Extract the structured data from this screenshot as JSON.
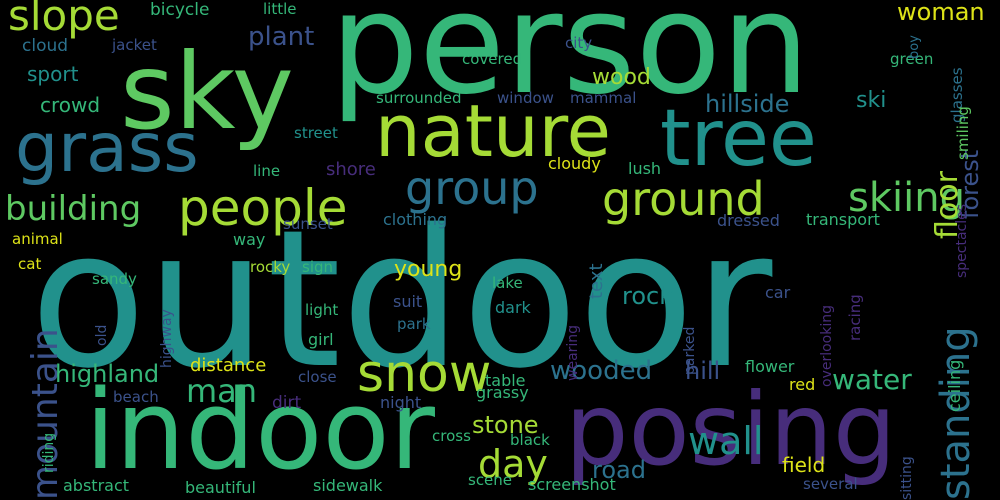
{
  "palette": {
    "background": "#000000",
    "yellow": "#dde318",
    "lime": "#a5db36",
    "green": "#5ec962",
    "emerald": "#35b779",
    "teal": "#21918c",
    "slate": "#2c728e",
    "indigo": "#3b528b",
    "violet": "#472d7b",
    "purple": "#440154"
  },
  "words": [
    {
      "text": "outdoor",
      "color": "teal"
    },
    {
      "text": "person",
      "color": "emerald"
    },
    {
      "text": "sky",
      "color": "green"
    },
    {
      "text": "indoor",
      "color": "emerald"
    },
    {
      "text": "posing",
      "color": "violet"
    },
    {
      "text": "nature",
      "color": "lime"
    },
    {
      "text": "tree",
      "color": "teal"
    },
    {
      "text": "grass",
      "color": "slate"
    },
    {
      "text": "people",
      "color": "lime"
    },
    {
      "text": "group",
      "color": "slate"
    },
    {
      "text": "ground",
      "color": "lime"
    },
    {
      "text": "snow",
      "color": "lime"
    },
    {
      "text": "slope",
      "color": "lime"
    },
    {
      "text": "standing",
      "color": "slate"
    },
    {
      "text": "skiing",
      "color": "green"
    },
    {
      "text": "building",
      "color": "green"
    },
    {
      "text": "mountain",
      "color": "indigo"
    },
    {
      "text": "wall",
      "color": "teal"
    },
    {
      "text": "day",
      "color": "lime"
    },
    {
      "text": "man",
      "color": "emerald"
    },
    {
      "text": "water",
      "color": "emerald"
    },
    {
      "text": "wooded",
      "color": "slate"
    },
    {
      "text": "highland",
      "color": "emerald"
    },
    {
      "text": "floor",
      "color": "lime"
    },
    {
      "text": "forest",
      "color": "indigo"
    },
    {
      "text": "hillside",
      "color": "slate"
    },
    {
      "text": "plant",
      "color": "indigo"
    },
    {
      "text": "woman",
      "color": "yellow"
    },
    {
      "text": "stone",
      "color": "lime"
    },
    {
      "text": "rock",
      "color": "teal"
    },
    {
      "text": "road",
      "color": "slate"
    },
    {
      "text": "young",
      "color": "yellow"
    },
    {
      "text": "hill",
      "color": "indigo"
    },
    {
      "text": "wood",
      "color": "lime"
    },
    {
      "text": "ski",
      "color": "teal"
    },
    {
      "text": "crowd",
      "color": "emerald"
    },
    {
      "text": "sport",
      "color": "teal"
    },
    {
      "text": "field",
      "color": "yellow"
    },
    {
      "text": "distance",
      "color": "yellow"
    },
    {
      "text": "shore",
      "color": "violet"
    },
    {
      "text": "text",
      "color": "slate"
    },
    {
      "text": "cloud",
      "color": "slate"
    },
    {
      "text": "bicycle",
      "color": "emerald"
    },
    {
      "text": "little",
      "color": "emerald"
    },
    {
      "text": "jacket",
      "color": "indigo"
    },
    {
      "text": "city",
      "color": "indigo"
    },
    {
      "text": "covered",
      "color": "emerald"
    },
    {
      "text": "green",
      "color": "emerald"
    },
    {
      "text": "boy",
      "color": "slate"
    },
    {
      "text": "glasses",
      "color": "slate"
    },
    {
      "text": "smiling",
      "color": "green"
    },
    {
      "text": "spectacles",
      "color": "violet"
    },
    {
      "text": "surrounded",
      "color": "emerald"
    },
    {
      "text": "window",
      "color": "indigo"
    },
    {
      "text": "mammal",
      "color": "indigo"
    },
    {
      "text": "street",
      "color": "teal"
    },
    {
      "text": "line",
      "color": "emerald"
    },
    {
      "text": "cloudy",
      "color": "yellow"
    },
    {
      "text": "lush",
      "color": "emerald"
    },
    {
      "text": "clothing",
      "color": "slate"
    },
    {
      "text": "sunset",
      "color": "indigo"
    },
    {
      "text": "dressed",
      "color": "indigo"
    },
    {
      "text": "transport",
      "color": "emerald"
    },
    {
      "text": "animal",
      "color": "yellow"
    },
    {
      "text": "way",
      "color": "emerald"
    },
    {
      "text": "cat",
      "color": "yellow"
    },
    {
      "text": "sandy",
      "color": "emerald"
    },
    {
      "text": "rocky",
      "color": "lime"
    },
    {
      "text": "sign",
      "color": "emerald"
    },
    {
      "text": "lake",
      "color": "emerald"
    },
    {
      "text": "wearing",
      "color": "violet"
    },
    {
      "text": "overlooking",
      "color": "violet"
    },
    {
      "text": "racing",
      "color": "violet"
    },
    {
      "text": "ceiling",
      "color": "emerald"
    },
    {
      "text": "highway",
      "color": "indigo"
    },
    {
      "text": "old",
      "color": "indigo"
    },
    {
      "text": "light",
      "color": "emerald"
    },
    {
      "text": "dark",
      "color": "teal"
    },
    {
      "text": "suit",
      "color": "indigo"
    },
    {
      "text": "park",
      "color": "slate"
    },
    {
      "text": "parked",
      "color": "indigo"
    },
    {
      "text": "car",
      "color": "indigo"
    },
    {
      "text": "girl",
      "color": "emerald"
    },
    {
      "text": "close",
      "color": "indigo"
    },
    {
      "text": "riding",
      "color": "emerald"
    },
    {
      "text": "beach",
      "color": "indigo"
    },
    {
      "text": "dirt",
      "color": "violet"
    },
    {
      "text": "night",
      "color": "indigo"
    },
    {
      "text": "table",
      "color": "emerald"
    },
    {
      "text": "grassy",
      "color": "emerald"
    },
    {
      "text": "flower",
      "color": "emerald"
    },
    {
      "text": "red",
      "color": "yellow"
    },
    {
      "text": "cross",
      "color": "emerald"
    },
    {
      "text": "black",
      "color": "emerald"
    },
    {
      "text": "sitting",
      "color": "indigo"
    },
    {
      "text": "abstract",
      "color": "emerald"
    },
    {
      "text": "beautiful",
      "color": "emerald"
    },
    {
      "text": "sidewalk",
      "color": "emerald"
    },
    {
      "text": "scene",
      "color": "emerald"
    },
    {
      "text": "screenshot",
      "color": "emerald"
    },
    {
      "text": "several",
      "color": "indigo"
    }
  ]
}
